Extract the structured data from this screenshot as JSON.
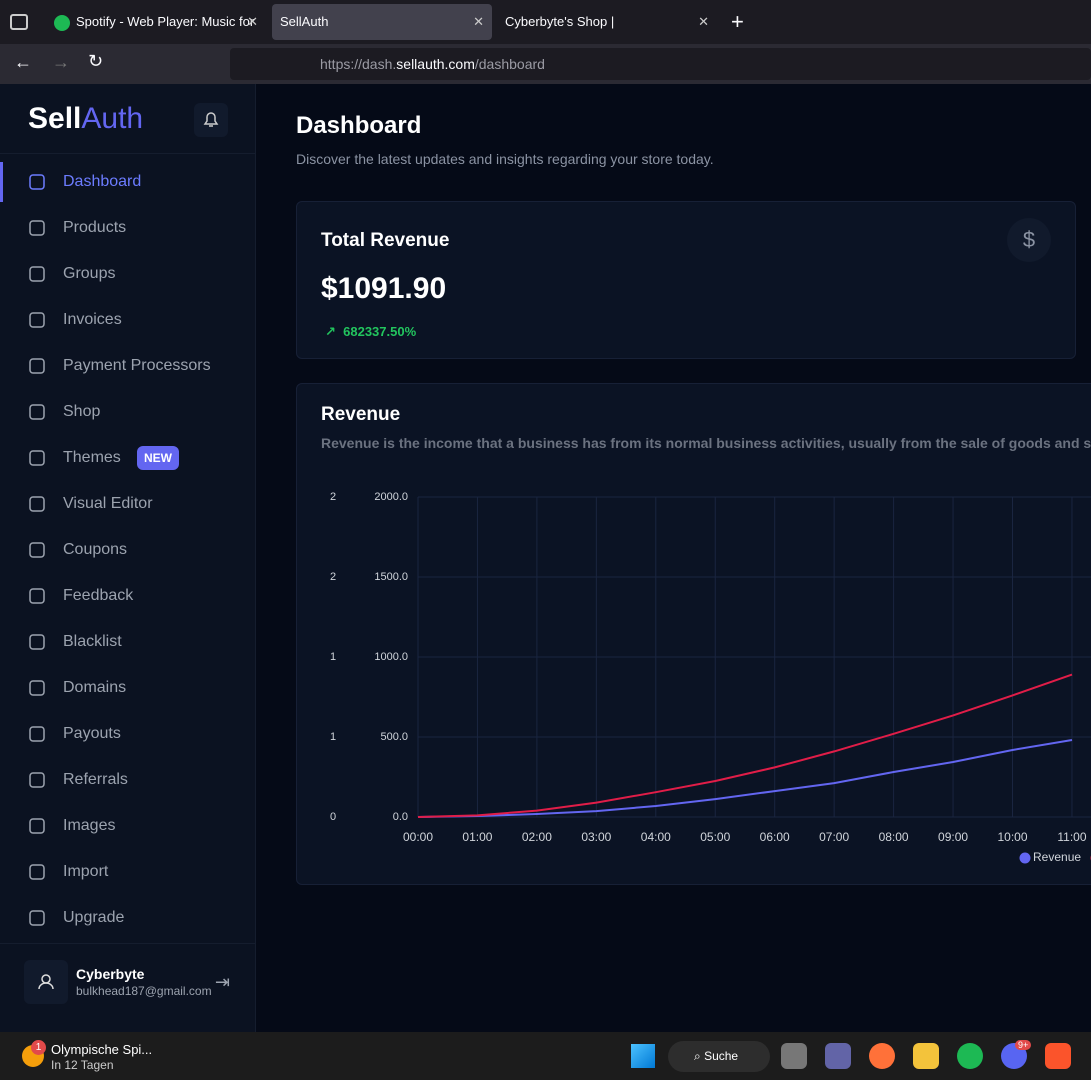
{
  "browser": {
    "tabs": [
      "Spotify - Web Player: Music for",
      "SellAuth",
      "Cyberbyte's Shop |"
    ],
    "url": {
      "scheme": "https://dash.",
      "domain": "sellauth.com",
      "path": "/dashboard"
    }
  },
  "sidebar": {
    "logo": {
      "first": "Sell",
      "second": "Auth"
    },
    "nav": [
      {
        "label": "Dashboard"
      },
      {
        "label": "Products"
      },
      {
        "label": "Groups"
      },
      {
        "label": "Invoices"
      },
      {
        "label": "Payment Processors"
      },
      {
        "label": "Shop"
      },
      {
        "label": "Themes",
        "badge": "NEW"
      },
      {
        "label": "Visual Editor"
      },
      {
        "label": "Coupons"
      },
      {
        "label": "Feedback"
      },
      {
        "label": "Blacklist"
      },
      {
        "label": "Domains"
      },
      {
        "label": "Payouts"
      },
      {
        "label": "Referrals"
      },
      {
        "label": "Images"
      },
      {
        "label": "Import"
      },
      {
        "label": "Upgrade"
      }
    ],
    "user": {
      "name": "Cyberbyte",
      "email": "bulkhead187@gmail.com"
    }
  },
  "header": {
    "title": "Dashboard",
    "subtitle": "Discover the latest updates and insights regarding your store today."
  },
  "revenue_card": {
    "title": "Total Revenue",
    "value": "$1091.90",
    "change": "682337.50%"
  },
  "chart_data": {
    "type": "line",
    "title": "Revenue",
    "subtitle": "Revenue is the income that a business has from its normal business activities, usually from the sale of goods and services t",
    "categories": [
      "00:00",
      "01:00",
      "02:00",
      "03:00",
      "04:00",
      "05:00",
      "06:00",
      "07:00",
      "08:00",
      "09:00",
      "10:00",
      "11:00"
    ],
    "series": [
      {
        "name": "Revenue",
        "color": "#6366f1",
        "values": [
          0,
          6,
          19,
          37,
          69,
          112,
          162,
          212,
          281,
          344,
          419,
          481
        ]
      },
      {
        "color": "#e11d48",
        "values": [
          0,
          10,
          40,
          90,
          155,
          225,
          310,
          410,
          520,
          635,
          760,
          890
        ]
      }
    ],
    "ylim": [
      0,
      2000
    ],
    "yticks": [
      {
        "value": 0,
        "label": "0.0"
      },
      {
        "value": 500,
        "label": "500.0"
      },
      {
        "value": 1000,
        "label": "1000.0"
      },
      {
        "value": 1500,
        "label": "1500.0"
      },
      {
        "value": 2000,
        "label": "2000.0"
      }
    ],
    "y2lim": [
      0,
      2
    ],
    "y2ticks": [
      {
        "value": 0,
        "label": "0"
      },
      {
        "value": 0.5,
        "label": "1"
      },
      {
        "value": 1,
        "label": "1"
      },
      {
        "value": 1.5,
        "label": "2"
      },
      {
        "value": 2,
        "label": "2"
      }
    ],
    "grid": true
  },
  "taskbar": {
    "widget": {
      "title": "Olympische Spi...",
      "subtitle": "In 12 Tagen",
      "badge": "1"
    },
    "search": "Suche",
    "discord_badge": "9+"
  }
}
